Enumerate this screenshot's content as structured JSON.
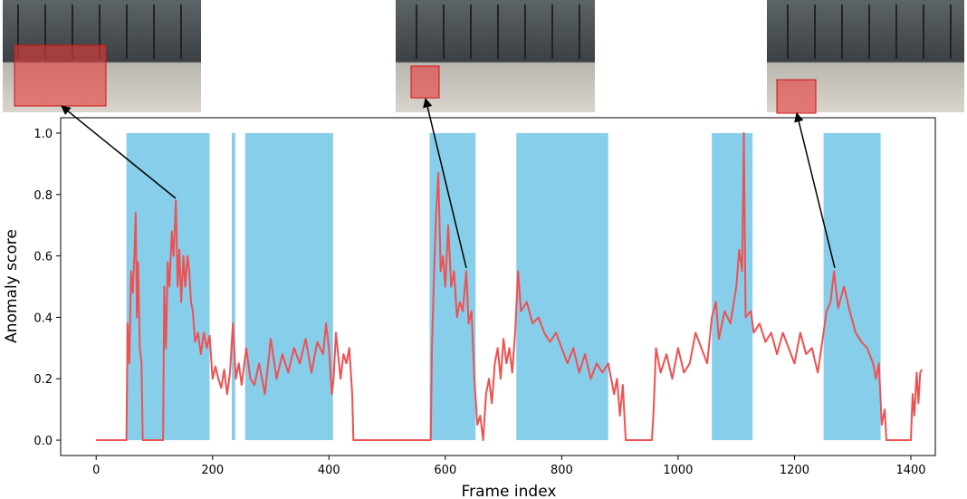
{
  "chart_data": {
    "type": "line",
    "xlabel": "Frame index",
    "ylabel": "Anomaly score",
    "xlim": [
      -61,
      1442
    ],
    "ylim": [
      -0.05,
      1.05
    ],
    "xticks": [
      0,
      200,
      400,
      600,
      800,
      1000,
      1200,
      1400
    ],
    "yticks": [
      {
        "value": 0,
        "label": "0.0"
      },
      {
        "value": 0.2,
        "label": "0.2"
      },
      {
        "value": 0.4,
        "label": "0.4"
      },
      {
        "value": 0.6,
        "label": "0.6"
      },
      {
        "value": 0.8,
        "label": "0.8"
      },
      {
        "value": 1,
        "label": "1.0"
      }
    ],
    "regions": [
      [
        52,
        195
      ],
      [
        233,
        239
      ],
      [
        256,
        407
      ],
      [
        573,
        652
      ],
      [
        722,
        880
      ],
      [
        1058,
        1128
      ],
      [
        1250,
        1348
      ]
    ],
    "region_color": "#87ceeb",
    "x": [
      0,
      50,
      52,
      54,
      57,
      60,
      63,
      66,
      68,
      70,
      72,
      75,
      78,
      80,
      115,
      117,
      120,
      123,
      126,
      130,
      133,
      137,
      140,
      143,
      146,
      150,
      153,
      157,
      160,
      163,
      166,
      170,
      175,
      180,
      185,
      190,
      195,
      200,
      205,
      210,
      215,
      220,
      225,
      230,
      235,
      240,
      245,
      250,
      258,
      265,
      272,
      280,
      290,
      300,
      310,
      320,
      330,
      340,
      350,
      360,
      370,
      380,
      390,
      395,
      400,
      405,
      408,
      412,
      420,
      425,
      430,
      435,
      440,
      442,
      575,
      577,
      580,
      584,
      588,
      592,
      596,
      600,
      605,
      610,
      615,
      620,
      625,
      630,
      636,
      640,
      645,
      650,
      655,
      660,
      665,
      670,
      675,
      680,
      685,
      690,
      695,
      700,
      705,
      710,
      715,
      720,
      725,
      730,
      740,
      750,
      760,
      770,
      780,
      790,
      800,
      810,
      820,
      830,
      840,
      850,
      860,
      870,
      880,
      890,
      895,
      900,
      905,
      910,
      955,
      958,
      962,
      970,
      980,
      990,
      1000,
      1010,
      1020,
      1030,
      1040,
      1050,
      1058,
      1065,
      1070,
      1080,
      1090,
      1100,
      1105,
      1110,
      1113,
      1116,
      1125,
      1130,
      1140,
      1150,
      1160,
      1170,
      1180,
      1190,
      1200,
      1210,
      1220,
      1230,
      1240,
      1250,
      1255,
      1262,
      1268,
      1275,
      1285,
      1295,
      1305,
      1315,
      1325,
      1335,
      1340,
      1345,
      1350,
      1355,
      1358,
      1400,
      1403,
      1406,
      1410,
      1413,
      1416,
      1419
    ],
    "series": [
      {
        "color": "#ef5050",
        "values": [
          0,
          0,
          0,
          0.38,
          0.25,
          0.55,
          0.48,
          0.62,
          0.74,
          0.4,
          0.58,
          0.3,
          0.25,
          0,
          0,
          0.5,
          0.3,
          0.58,
          0.5,
          0.68,
          0.6,
          0.78,
          0.5,
          0.62,
          0.45,
          0.6,
          0.5,
          0.6,
          0.55,
          0.45,
          0.42,
          0.32,
          0.35,
          0.28,
          0.35,
          0.3,
          0.34,
          0.2,
          0.24,
          0.2,
          0.17,
          0.23,
          0.15,
          0.22,
          0.38,
          0.2,
          0.25,
          0.18,
          0.3,
          0.2,
          0.18,
          0.25,
          0.15,
          0.33,
          0.2,
          0.28,
          0.22,
          0.3,
          0.25,
          0.33,
          0.22,
          0.32,
          0.28,
          0.38,
          0.3,
          0.15,
          0.2,
          0.35,
          0.2,
          0.28,
          0.25,
          0.3,
          0.15,
          0,
          0,
          0.3,
          0.5,
          0.73,
          0.87,
          0.55,
          0.6,
          0.5,
          0.7,
          0.5,
          0.55,
          0.4,
          0.45,
          0.42,
          0.55,
          0.38,
          0.42,
          0.2,
          0.05,
          0.08,
          0,
          0.15,
          0.2,
          0.12,
          0.25,
          0.3,
          0.2,
          0.33,
          0.25,
          0.3,
          0.22,
          0.35,
          0.55,
          0.42,
          0.45,
          0.38,
          0.4,
          0.35,
          0.32,
          0.35,
          0.3,
          0.25,
          0.3,
          0.22,
          0.28,
          0.2,
          0.25,
          0.22,
          0.25,
          0.15,
          0.2,
          0.08,
          0.18,
          0,
          0,
          0.1,
          0.3,
          0.22,
          0.28,
          0.2,
          0.3,
          0.22,
          0.25,
          0.35,
          0.3,
          0.25,
          0.4,
          0.45,
          0.33,
          0.42,
          0.38,
          0.5,
          0.62,
          0.55,
          1.0,
          0.4,
          0.42,
          0.35,
          0.38,
          0.32,
          0.35,
          0.28,
          0.35,
          0.3,
          0.25,
          0.35,
          0.28,
          0.3,
          0.22,
          0.35,
          0.42,
          0.45,
          0.55,
          0.43,
          0.5,
          0.42,
          0.35,
          0.32,
          0.3,
          0.25,
          0.2,
          0.25,
          0.05,
          0.1,
          0,
          0,
          0.15,
          0.08,
          0.22,
          0.12,
          0.22,
          0.23
        ]
      }
    ]
  }
}
